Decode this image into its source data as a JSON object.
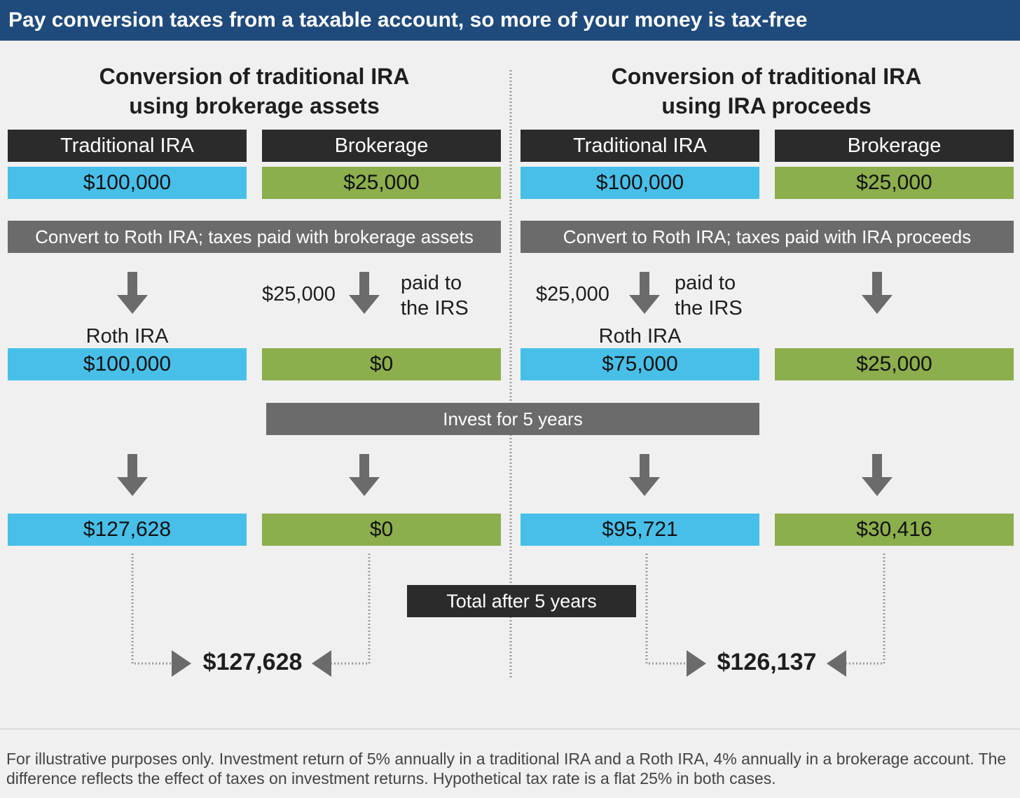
{
  "header": {
    "title": "Pay conversion taxes from a taxable account, so more of your money is tax-free"
  },
  "left": {
    "heading_line1": "Conversion of traditional IRA",
    "heading_line2": "using brokerage assets",
    "col1_header": "Traditional IRA",
    "col2_header": "Brokerage",
    "col1_start": "$100,000",
    "col2_start": "$25,000",
    "convert_label": "Convert to Roth IRA; taxes paid with brokerage assets",
    "tax_amount": "$25,000",
    "paid_line1": "paid to",
    "paid_line2": "the IRS",
    "roth_label": "Roth IRA",
    "col1_after": "$100,000",
    "col2_after": "$0",
    "col1_final": "$127,628",
    "col2_final": "$0",
    "total": "$127,628"
  },
  "right": {
    "heading_line1": "Conversion of traditional IRA",
    "heading_line2": "using IRA proceeds",
    "col1_header": "Traditional IRA",
    "col2_header": "Brokerage",
    "col1_start": "$100,000",
    "col2_start": "$25,000",
    "convert_label": "Convert to Roth IRA; taxes paid with IRA proceeds",
    "tax_amount": "$25,000",
    "paid_line1": "paid to",
    "paid_line2": "the IRS",
    "roth_label": "Roth IRA",
    "col1_after": "$75,000",
    "col2_after": "$25,000",
    "col1_final": "$95,721",
    "col2_final": "$30,416",
    "total": "$126,137"
  },
  "middle": {
    "invest_label": "Invest for 5 years",
    "total_label": "Total after 5 years"
  },
  "footer": {
    "note": "For illustrative purposes only. Investment return of 5% annually in a traditional IRA and a Roth IRA, 4% annually in a brokerage account. The difference reflects the effect of taxes on investment returns. Hypothetical tax rate is a flat 25% in both cases."
  },
  "colors": {
    "title_bar": "#1f4a7c",
    "ira": "#48bfe9",
    "brokerage": "#8cae4c",
    "dark_header": "#2b2b2b",
    "gray_banner": "#6b6b6b",
    "arrow": "#6b6b6b"
  },
  "icons": {
    "down_arrow": "arrow-down-icon",
    "right_pointer": "triangle-right-icon",
    "left_pointer": "triangle-left-icon"
  }
}
